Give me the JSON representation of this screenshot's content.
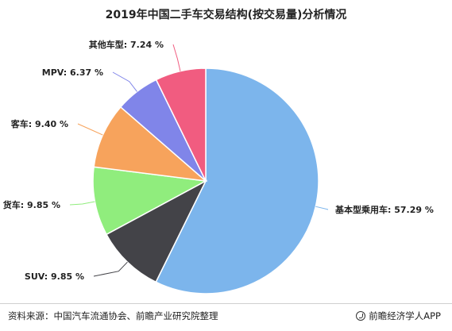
{
  "chart_data": {
    "type": "pie",
    "title": "2019年中国二手车交易结构(按交易量)分析情况",
    "unit": "%",
    "slices": [
      {
        "label": "基本型乘用车",
        "value": 57.29,
        "color": "#7cb5ec"
      },
      {
        "label": "SUV",
        "value": 9.85,
        "color": "#434348"
      },
      {
        "label": "货车",
        "value": 9.85,
        "color": "#90ed7d"
      },
      {
        "label": "客车",
        "value": 9.4,
        "color": "#f7a35c"
      },
      {
        "label": "MPV",
        "value": 6.37,
        "color": "#8085e9"
      },
      {
        "label": "其他车型",
        "value": 7.24,
        "color": "#f15c80"
      }
    ],
    "start_angle_deg": 0,
    "direction": "clockwise",
    "legend": "none"
  },
  "footer": {
    "source": "资料来源：中国汽车流通协会、前瞻产业研究院整理",
    "brand": "前瞻经济学人APP"
  }
}
